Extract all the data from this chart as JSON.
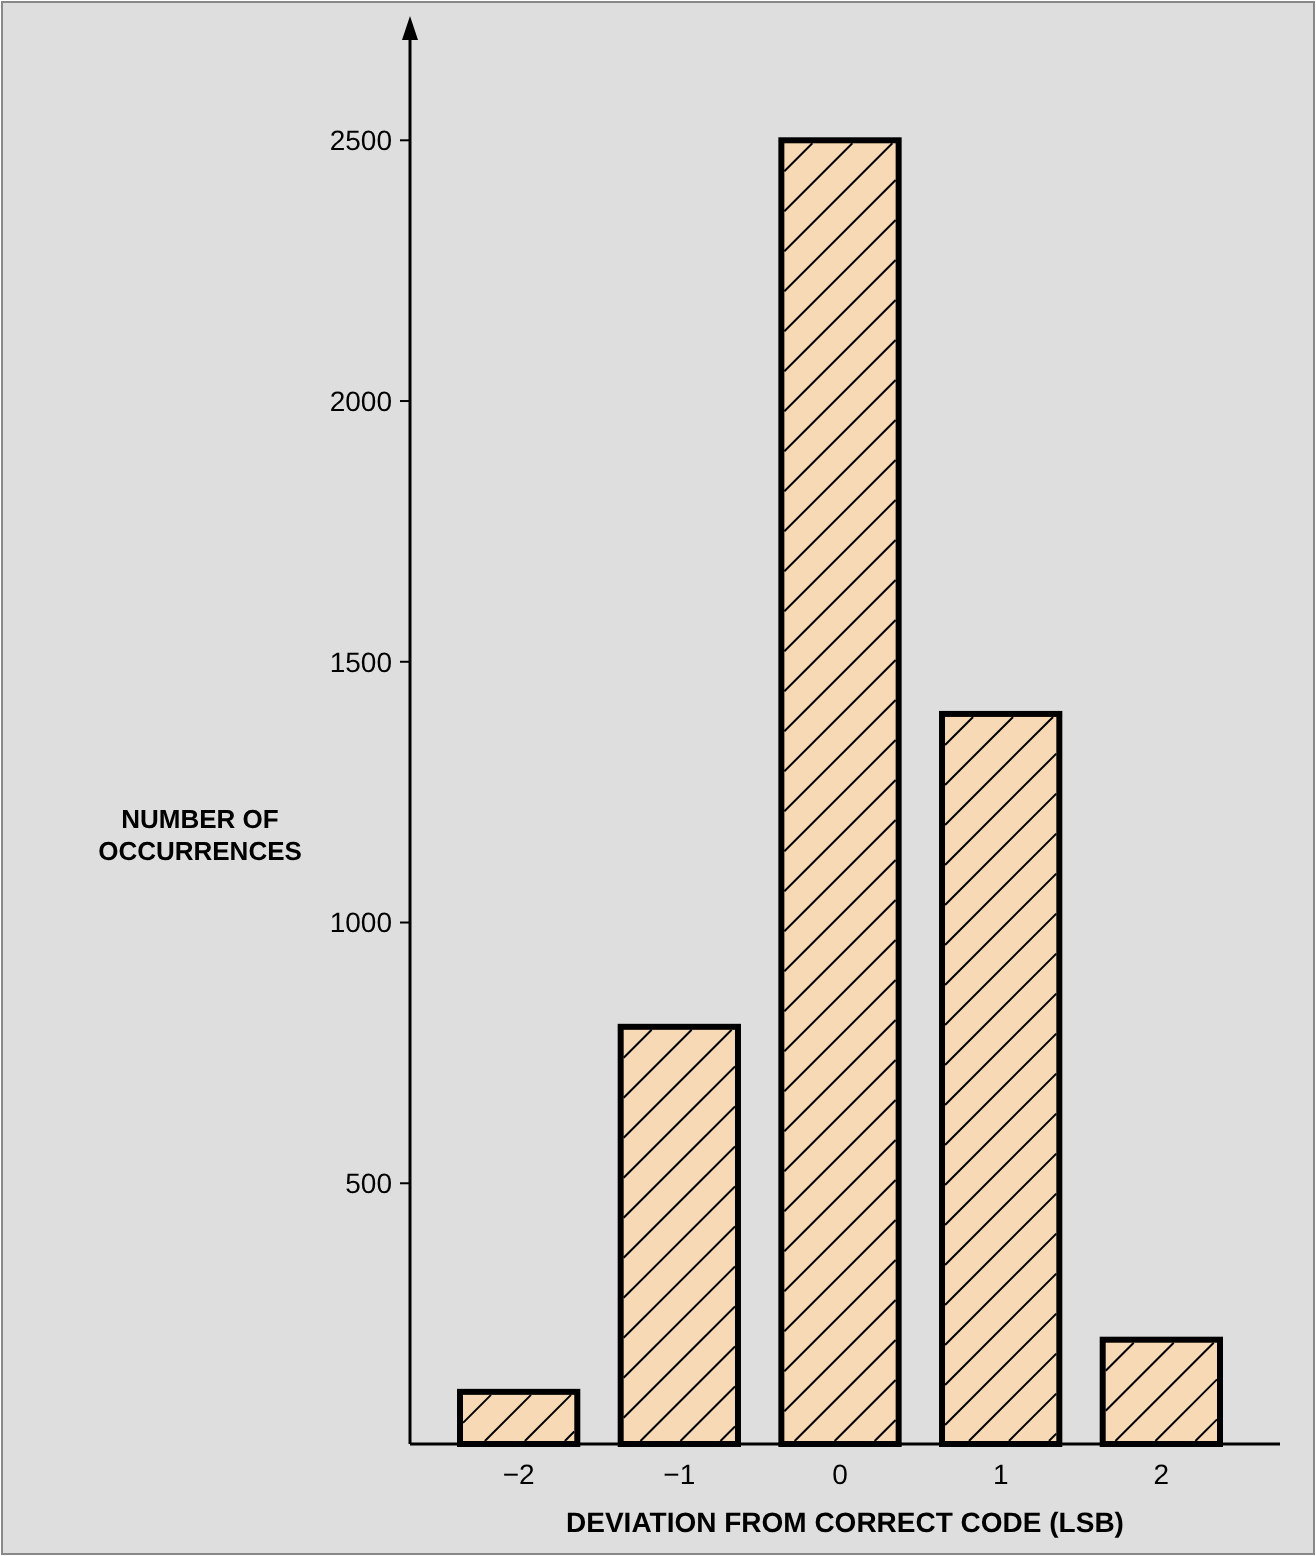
{
  "chart_data": {
    "type": "bar",
    "xlabel": "DEVIATION FROM CORRECT CODE (LSB)",
    "ylabel": "NUMBER OF OCCURRENCES",
    "categories": [
      "−2",
      "−1",
      "0",
      "1",
      "2"
    ],
    "values": [
      100,
      800,
      2500,
      1400,
      200
    ],
    "color": "#f7d9b5",
    "ylim": [
      0,
      2700
    ],
    "yticks": [
      500,
      1000,
      1500,
      2000,
      2500
    ],
    "grid": false
  }
}
